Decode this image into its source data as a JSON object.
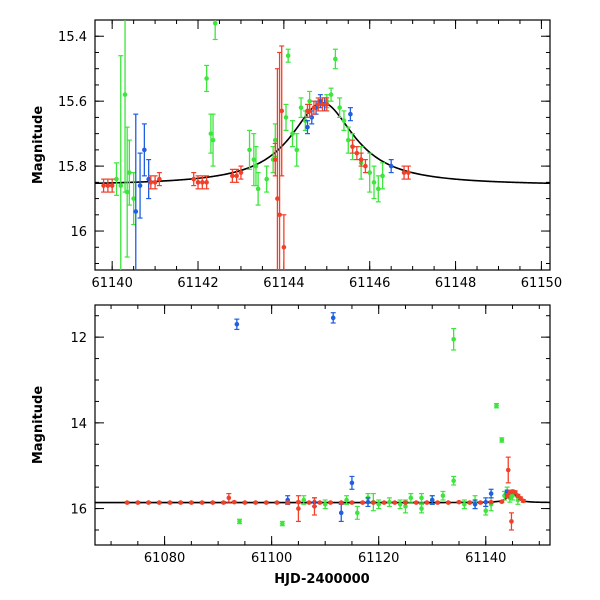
{
  "chart_data": [
    {
      "type": "scatter",
      "title": "",
      "xlabel": "",
      "ylabel": "Magnitude",
      "xlim": [
        61139.6,
        61150.2
      ],
      "ylim": [
        16.12,
        15.35
      ],
      "y_inverted": true,
      "xticks": [
        61140,
        61142,
        61144,
        61146,
        61148,
        61150
      ],
      "yticks": [
        15.4,
        15.6,
        15.8,
        16
      ],
      "ytick_labels": [
        "15.4",
        "15.6",
        "15.8",
        "16"
      ],
      "colors": {
        "green": "#3ce63c",
        "blue": "#1f5fe0",
        "red": "#f0402a",
        "model": "#000000"
      },
      "model": {
        "t0": 61144.9,
        "base": 15.86,
        "amp": 0.255,
        "tE": 0.9
      },
      "series": [
        {
          "name": "green",
          "color": "#3ce63c",
          "x": [
            61140.1,
            61140.2,
            61140.3,
            61140.35,
            61140.4,
            61140.5,
            61142.2,
            61142.3,
            61142.35,
            61142.4,
            61143.2,
            61143.3,
            61143.35,
            61143.4,
            61143.6,
            61143.75,
            61143.8,
            61144.05,
            61144.1,
            61144.2,
            61144.3,
            61144.4,
            61144.5,
            61144.6,
            61145.0,
            61145.1,
            61145.2,
            61145.3,
            61145.4,
            61145.5,
            61145.6,
            61145.8,
            61146.0,
            61146.1,
            61146.2,
            61146.3
          ],
          "y": [
            15.84,
            15.86,
            15.58,
            15.88,
            15.82,
            15.9,
            15.53,
            15.7,
            15.72,
            15.36,
            15.75,
            15.78,
            15.8,
            15.87,
            15.84,
            15.78,
            15.72,
            15.65,
            15.46,
            15.7,
            15.75,
            15.62,
            15.66,
            15.6,
            15.6,
            15.58,
            15.47,
            15.62,
            15.66,
            15.72,
            15.74,
            15.79,
            15.82,
            15.85,
            15.87,
            15.83
          ],
          "err": [
            0.05,
            0.4,
            0.3,
            0.2,
            0.1,
            0.08,
            0.04,
            0.06,
            0.08,
            0.05,
            0.06,
            0.08,
            0.06,
            0.05,
            0.04,
            0.04,
            0.05,
            0.04,
            0.02,
            0.04,
            0.05,
            0.03,
            0.03,
            0.03,
            0.02,
            0.02,
            0.03,
            0.03,
            0.03,
            0.04,
            0.04,
            0.05,
            0.06,
            0.05,
            0.04,
            0.04
          ]
        },
        {
          "name": "blue",
          "color": "#1f5fe0",
          "x": [
            61140.55,
            61140.65,
            61140.75,
            61140.85,
            61144.55,
            61144.65,
            61144.75,
            61144.85,
            61144.95,
            61145.55,
            61146.5
          ],
          "y": [
            15.94,
            15.86,
            15.75,
            15.84,
            15.68,
            15.65,
            15.62,
            15.6,
            15.61,
            15.64,
            15.8
          ],
          "err": [
            0.3,
            0.1,
            0.08,
            0.06,
            0.02,
            0.02,
            0.02,
            0.02,
            0.02,
            0.02,
            0.02
          ]
        },
        {
          "name": "red",
          "color": "#f0402a",
          "x": [
            61139.8,
            61139.9,
            61140.0,
            61140.9,
            61141.0,
            61141.1,
            61141.9,
            61142.0,
            61142.1,
            61142.2,
            61142.8,
            61142.9,
            61143.0,
            61143.8,
            61143.85,
            61143.9,
            61143.95,
            61144.0,
            61144.55,
            61144.6,
            61144.7,
            61144.8,
            61144.9,
            61145.0,
            61145.6,
            61145.7,
            61145.8,
            61145.9,
            61146.8,
            61146.9
          ],
          "y": [
            15.86,
            15.86,
            15.86,
            15.85,
            15.85,
            15.84,
            15.84,
            15.85,
            15.85,
            15.85,
            15.83,
            15.83,
            15.82,
            15.78,
            15.9,
            15.95,
            15.63,
            16.05,
            15.63,
            15.63,
            15.62,
            15.61,
            15.61,
            15.61,
            15.74,
            15.76,
            15.78,
            15.8,
            15.82,
            15.82
          ],
          "err": [
            0.02,
            0.02,
            0.02,
            0.02,
            0.02,
            0.02,
            0.02,
            0.02,
            0.02,
            0.02,
            0.02,
            0.02,
            0.02,
            0.05,
            0.4,
            0.5,
            0.2,
            0.1,
            0.02,
            0.02,
            0.02,
            0.02,
            0.02,
            0.02,
            0.02,
            0.02,
            0.02,
            0.02,
            0.02,
            0.02
          ]
        }
      ]
    },
    {
      "type": "scatter",
      "title": "",
      "xlabel": "HJD-2400000",
      "ylabel": "Magnitude",
      "xlim": [
        61067,
        61152
      ],
      "ylim": [
        16.85,
        11.25
      ],
      "y_inverted": true,
      "xticks": [
        61080,
        61100,
        61120,
        61140
      ],
      "yticks": [
        12,
        14,
        16
      ],
      "ytick_labels": [
        "12",
        "14",
        "16"
      ],
      "colors": {
        "green": "#3ce63c",
        "blue": "#1f5fe0",
        "red": "#f0402a",
        "model": "#000000"
      },
      "model": {
        "t0": 61144.9,
        "base": 15.86,
        "amp": 0.255,
        "tE": 0.9
      },
      "series": [
        {
          "name": "green",
          "color": "#3ce63c",
          "x": [
            61094,
            61102,
            61106,
            61110,
            61114,
            61116,
            61118,
            61120,
            61122,
            61124,
            61126,
            61128,
            61130,
            61132,
            61134,
            61134,
            61136,
            61138,
            61140,
            61141,
            61142,
            61143,
            61143.5,
            61144,
            61144.5,
            61145,
            61146,
            61125,
            61119,
            61128
          ],
          "y": [
            16.3,
            16.35,
            15.8,
            15.9,
            15.8,
            16.1,
            15.75,
            15.9,
            15.85,
            15.9,
            15.75,
            16.0,
            15.8,
            15.7,
            12.05,
            15.35,
            15.9,
            15.85,
            16.05,
            15.9,
            13.6,
            14.4,
            15.7,
            15.6,
            15.75,
            15.7,
            15.8,
            15.95,
            15.85,
            15.75
          ],
          "err": [
            0.05,
            0.05,
            0.1,
            0.1,
            0.1,
            0.15,
            0.1,
            0.1,
            0.1,
            0.1,
            0.1,
            0.1,
            0.1,
            0.1,
            0.25,
            0.1,
            0.1,
            0.15,
            0.1,
            0.15,
            0.05,
            0.05,
            0.1,
            0.1,
            0.1,
            0.1,
            0.1,
            0.15,
            0.2,
            0.1
          ]
        },
        {
          "name": "blue",
          "color": "#1f5fe0",
          "x": [
            61093.5,
            61111.5,
            61103,
            61108,
            61113,
            61115,
            61118,
            61130,
            61138,
            61140,
            61141,
            61144
          ],
          "y": [
            11.7,
            11.55,
            15.8,
            15.85,
            16.1,
            15.4,
            15.85,
            15.8,
            15.9,
            15.85,
            15.65,
            15.62
          ],
          "err": [
            0.12,
            0.12,
            0.1,
            0.1,
            0.2,
            0.15,
            0.1,
            0.1,
            0.1,
            0.1,
            0.1,
            0.05
          ]
        },
        {
          "name": "red",
          "color": "#f0402a",
          "x": [
            61073,
            61075,
            61077,
            61079,
            61081,
            61083,
            61085,
            61087,
            61089,
            61091,
            61093,
            61095,
            61097,
            61099,
            61101,
            61103,
            61105,
            61107,
            61109,
            61111,
            61113,
            61115,
            61117,
            61119,
            61121,
            61123,
            61125,
            61127,
            61129,
            61131,
            61133,
            61135,
            61137,
            61139,
            61141,
            61143,
            61144,
            61144.5,
            61145,
            61145.5,
            61146,
            61146.5,
            61147,
            61144.2,
            61144.8,
            61092,
            61105,
            61108
          ],
          "y": [
            15.86,
            15.86,
            15.86,
            15.86,
            15.86,
            15.86,
            15.86,
            15.86,
            15.86,
            15.86,
            15.85,
            15.86,
            15.86,
            15.86,
            15.86,
            15.86,
            15.85,
            15.86,
            15.86,
            15.86,
            15.86,
            15.86,
            15.86,
            15.86,
            15.86,
            15.86,
            15.86,
            15.86,
            15.86,
            15.86,
            15.86,
            15.85,
            15.86,
            15.86,
            15.85,
            15.84,
            15.7,
            15.62,
            15.6,
            15.62,
            15.7,
            15.76,
            15.82,
            15.1,
            16.3,
            15.75,
            16.0,
            15.95
          ],
          "err": [
            0.02,
            0.02,
            0.02,
            0.02,
            0.02,
            0.02,
            0.02,
            0.02,
            0.02,
            0.02,
            0.02,
            0.02,
            0.02,
            0.02,
            0.02,
            0.02,
            0.02,
            0.02,
            0.02,
            0.02,
            0.02,
            0.02,
            0.02,
            0.02,
            0.02,
            0.02,
            0.02,
            0.02,
            0.02,
            0.02,
            0.02,
            0.02,
            0.02,
            0.02,
            0.02,
            0.02,
            0.05,
            0.03,
            0.03,
            0.03,
            0.03,
            0.03,
            0.03,
            0.3,
            0.2,
            0.1,
            0.3,
            0.2
          ]
        }
      ]
    }
  ]
}
